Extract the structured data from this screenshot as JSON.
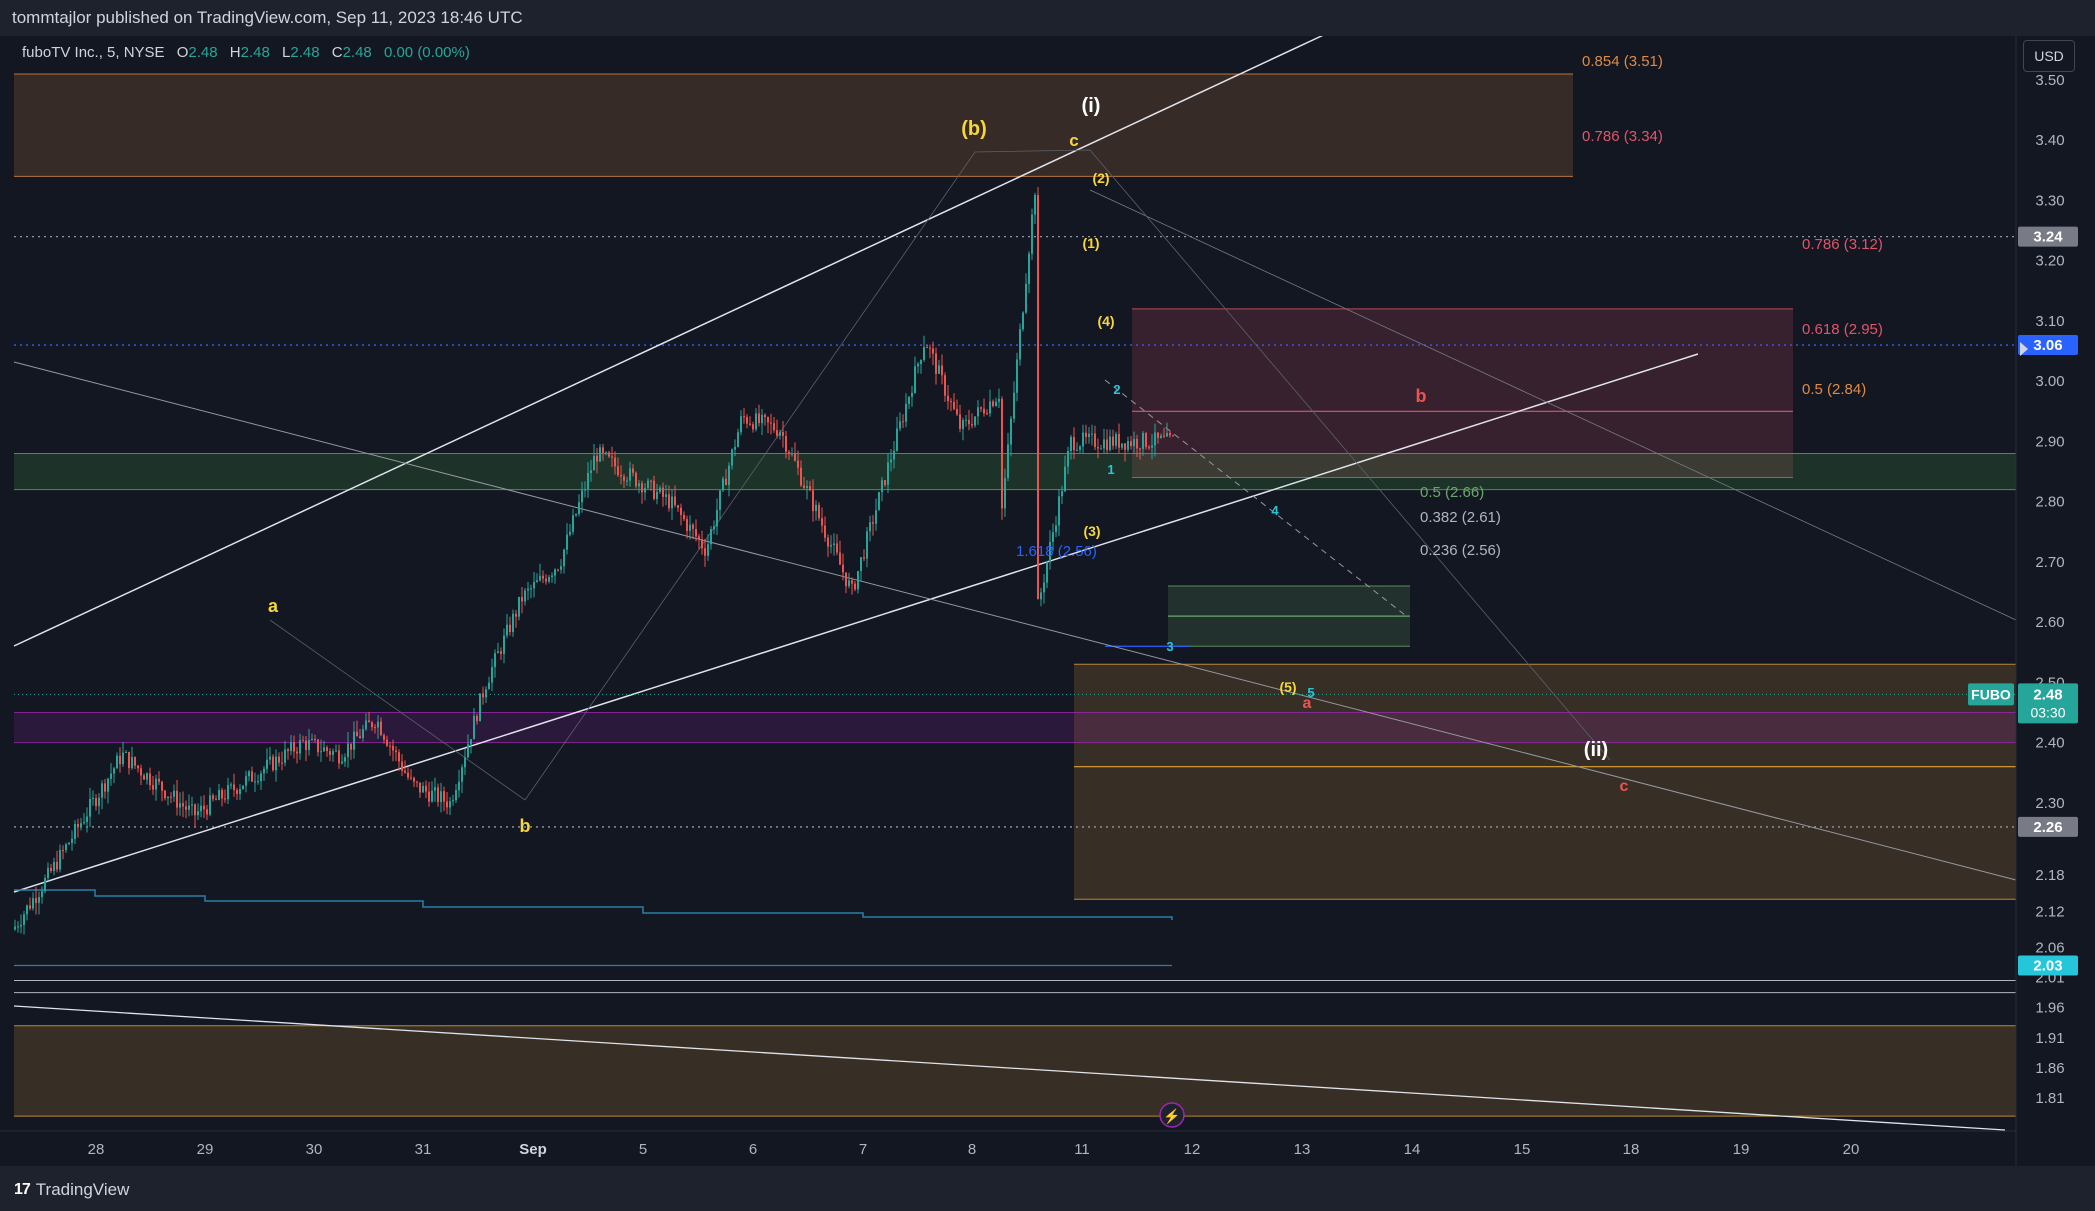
{
  "header": {
    "published": "tommtajlor published on TradingView.com, Sep 11, 2023 18:46 UTC",
    "symbol": "fuboTV Inc., 5, NYSE",
    "o_label": "O",
    "o_value": "2.48",
    "h_label": "H",
    "h_value": "2.48",
    "l_label": "L",
    "l_value": "2.48",
    "c_label": "C",
    "c_value": "2.48",
    "change": "0.00 (0.00%)",
    "currency": "USD"
  },
  "footer": {
    "brand": "TradingView",
    "logo_mark": "17"
  },
  "colors": {
    "background": "#131722",
    "bullish": "#26a69a",
    "bearish": "#ef5350",
    "wave_yellow": "#f5d73a",
    "wave_cyan": "#26c6da",
    "fib_red": "#e0556b",
    "fib_orange": "#e08a43",
    "fib_green": "#6aa86a",
    "accent_blue": "#2962ff"
  },
  "chart_data": {
    "type": "candlestick",
    "timeframe": "5",
    "symbol": "FUBO",
    "x_ticks": [
      "28",
      "29",
      "30",
      "31",
      "Sep",
      "5",
      "6",
      "7",
      "8",
      "11",
      "12",
      "13",
      "14",
      "15",
      "18",
      "19",
      "20"
    ],
    "y_ticks": [
      "3.50",
      "3.40",
      "3.30",
      "3.20",
      "3.10",
      "3.00",
      "2.90",
      "2.80",
      "2.70",
      "2.60",
      "2.50",
      "2.40",
      "2.30",
      "2.18",
      "2.12",
      "2.06",
      "2.01",
      "1.96",
      "1.91",
      "1.86",
      "1.81"
    ],
    "price_path": [
      [
        "28",
        2.09
      ],
      [
        "28",
        2.18
      ],
      [
        "29",
        2.28
      ],
      [
        "29",
        2.38
      ],
      [
        "30",
        2.36
      ],
      [
        "30",
        2.4
      ],
      [
        "31",
        2.38
      ],
      [
        "31",
        2.44
      ],
      [
        "31",
        2.33
      ],
      [
        "Sep",
        2.3
      ],
      [
        "Sep",
        2.5
      ],
      [
        "Sep",
        2.64
      ],
      [
        "5",
        2.7
      ],
      [
        "5",
        2.88
      ],
      [
        "6",
        2.94
      ],
      [
        "6",
        2.8
      ],
      [
        "6",
        2.72
      ],
      [
        "7",
        2.65
      ],
      [
        "7",
        2.92
      ],
      [
        "8",
        3.07
      ],
      [
        "8",
        2.92
      ],
      [
        "11",
        2.98
      ],
      [
        "11",
        3.32
      ],
      [
        "11",
        2.9
      ],
      [
        "11",
        2.74
      ],
      [
        "11",
        2.6
      ],
      [
        "11",
        2.48
      ]
    ],
    "last_price": "2.48",
    "countdown": "03:30",
    "ticker_label": "FUBO",
    "horizontal_levels": [
      {
        "value": "3.24",
        "style": "dotted",
        "label_color": "#787b86"
      },
      {
        "value": "3.06",
        "style": "dotted",
        "label_color": "#2962ff"
      },
      {
        "value": "2.26",
        "style": "dotted",
        "label_color": "#787b86"
      },
      {
        "value": "2.03",
        "style": "solid",
        "label_color": "#26c6da"
      }
    ],
    "fib_labels": [
      {
        "text": "0.854 (3.51)",
        "color": "#e08a43"
      },
      {
        "text": "0.786 (3.34)",
        "color": "#e0556b"
      },
      {
        "text": "0.786 (3.12)",
        "color": "#e0556b"
      },
      {
        "text": "0.618 (2.95)",
        "color": "#e0556b"
      },
      {
        "text": "0.5 (2.84)",
        "color": "#e08a43"
      },
      {
        "text": "0.5 (2.66)",
        "color": "#6aa86a"
      },
      {
        "text": "0.382 (2.61)",
        "color": "#b2b5be"
      },
      {
        "text": "0.236 (2.56)",
        "color": "#b2b5be"
      },
      {
        "text": "1.618 (2.56)",
        "color": "#2962ff"
      }
    ],
    "wave_labels": [
      {
        "text": "(i)",
        "color": "#ffffff"
      },
      {
        "text": "(b)",
        "color": "#f5d73a"
      },
      {
        "text": "c",
        "color": "#f5d73a"
      },
      {
        "text": "(2)",
        "color": "#f5d73a"
      },
      {
        "text": "(1)",
        "color": "#f5d73a"
      },
      {
        "text": "(4)",
        "color": "#f5d73a"
      },
      {
        "text": "(3)",
        "color": "#f5d73a"
      },
      {
        "text": "(5)",
        "color": "#f5d73a"
      },
      {
        "text": "a",
        "color": "#f5d73a"
      },
      {
        "text": "b",
        "color": "#f5d73a"
      },
      {
        "text": "2",
        "color": "#26c6da"
      },
      {
        "text": "1",
        "color": "#26c6da"
      },
      {
        "text": "4",
        "color": "#26c6da"
      },
      {
        "text": "3",
        "color": "#26c6da"
      },
      {
        "text": "5",
        "color": "#26c6da"
      },
      {
        "text": "b",
        "color": "#ef5350"
      },
      {
        "text": "a",
        "color": "#ef5350"
      },
      {
        "text": "c",
        "color": "#ef5350"
      },
      {
        "text": "(ii)",
        "color": "#ffffff"
      }
    ],
    "zones": [
      {
        "name": "upper-red-zone",
        "from": 3.34,
        "to": 3.51,
        "color": "#e08a43"
      },
      {
        "name": "fib-red-zone",
        "from": 2.84,
        "to": 3.12,
        "color": "#e0556b"
      },
      {
        "name": "green-zone",
        "from": 2.82,
        "to": 2.88,
        "color": "#4caf50"
      },
      {
        "name": "green-fib-box",
        "from": 2.56,
        "to": 2.66,
        "color": "#6aa86a"
      },
      {
        "name": "orange-target-box",
        "from": 2.14,
        "to": 2.53,
        "color": "#e0a33a"
      },
      {
        "name": "purple-zone",
        "from": 2.4,
        "to": 2.45,
        "color": "#9c27b0"
      },
      {
        "name": "bottom-orange-zone",
        "from": 1.78,
        "to": 1.93,
        "color": "#e0a33a"
      }
    ],
    "grid": false,
    "legend": "top-left"
  }
}
